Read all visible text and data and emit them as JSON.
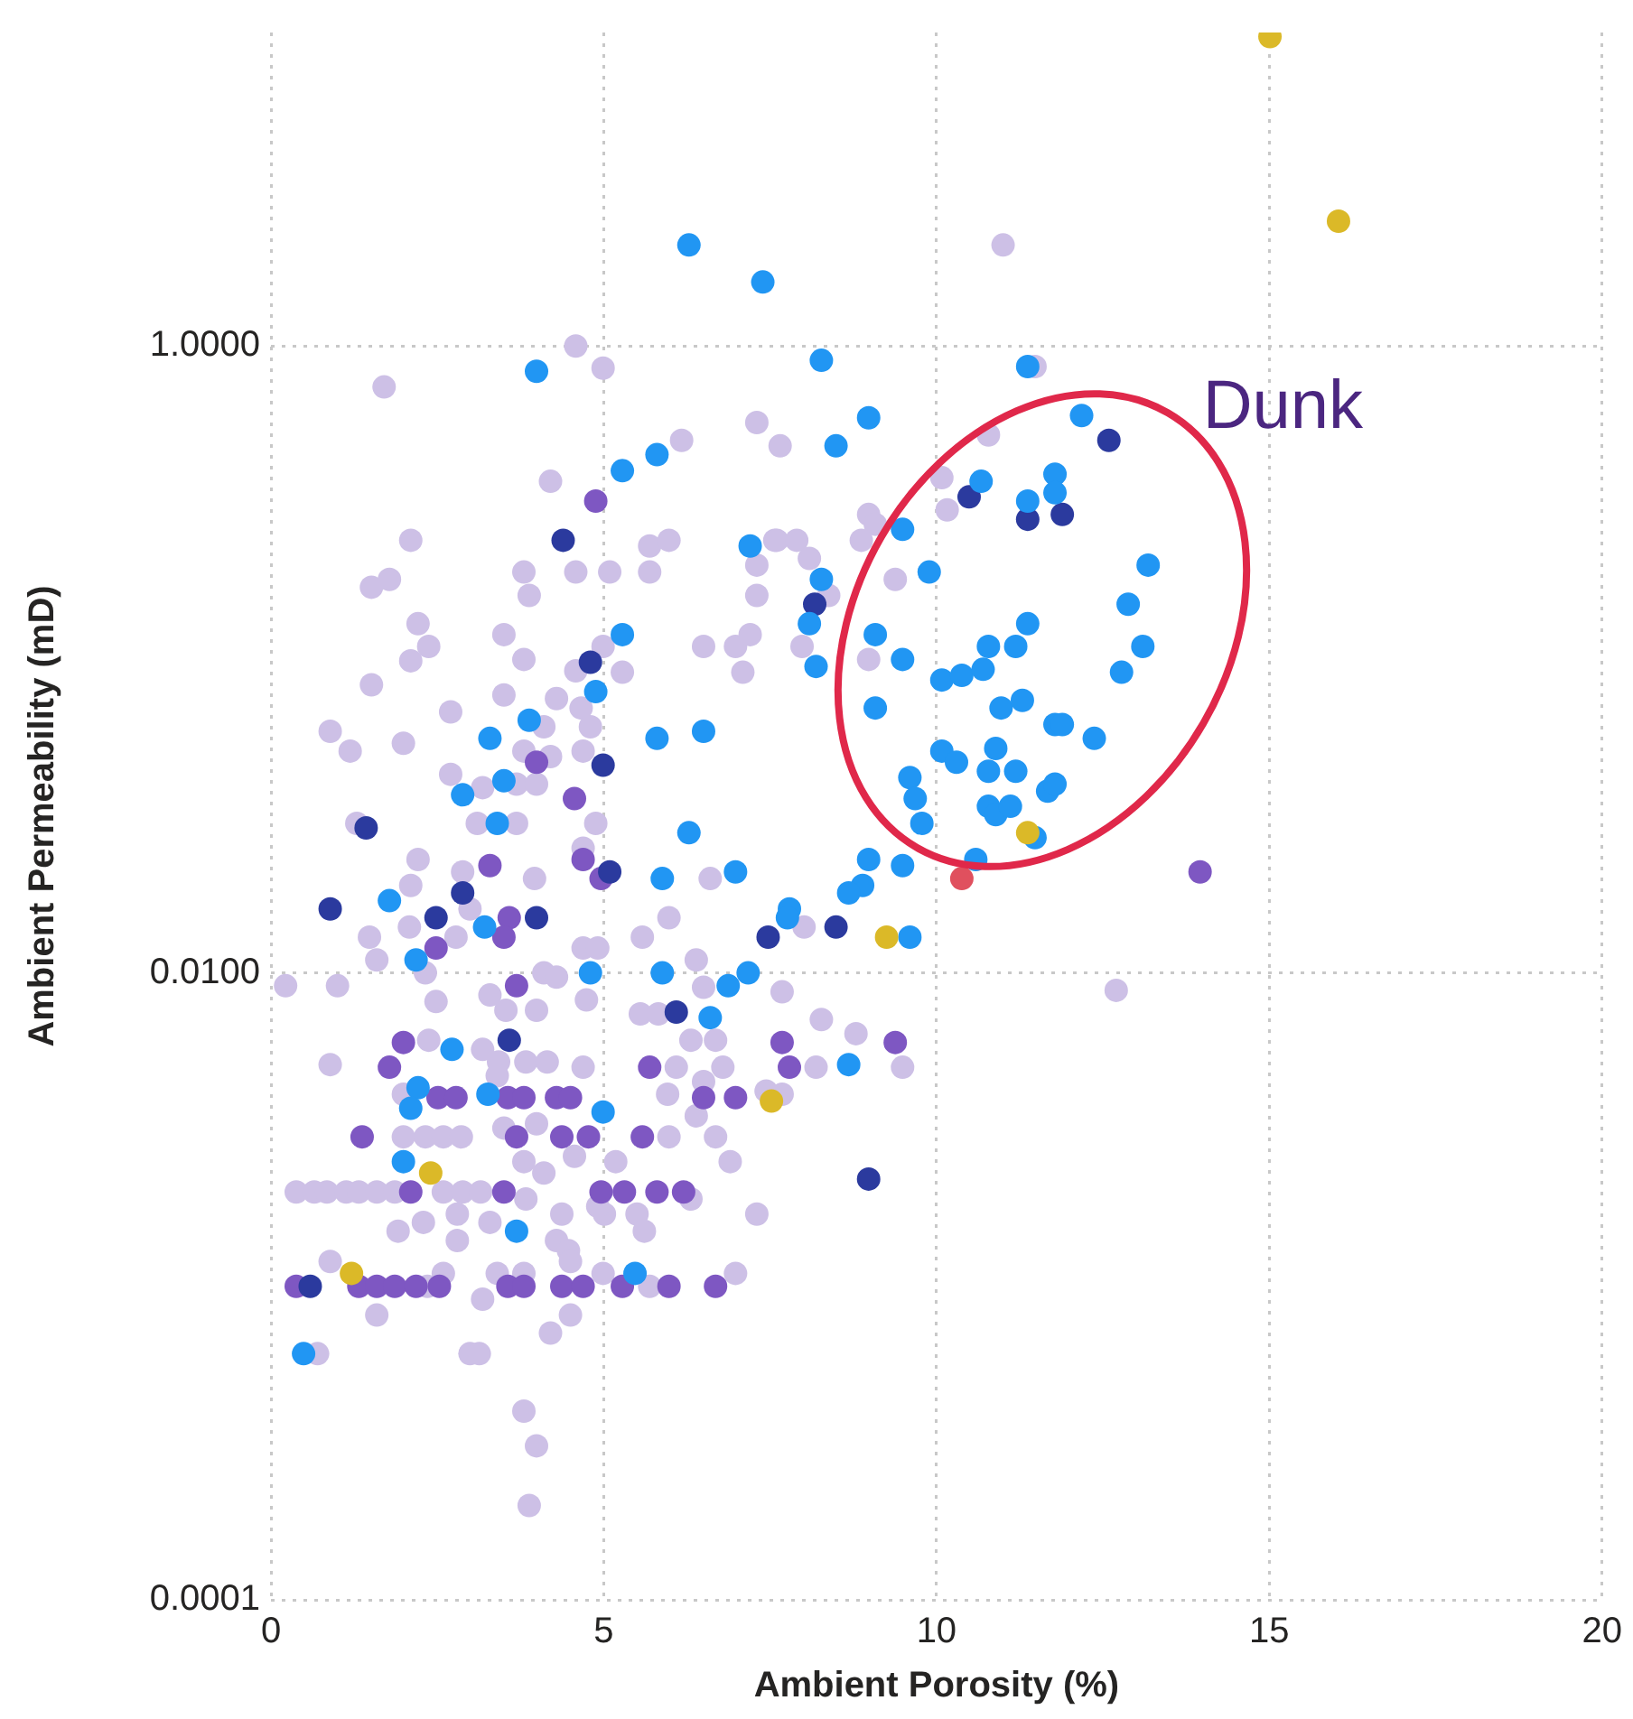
{
  "chart_data": {
    "type": "scatter",
    "xlabel": "Ambient Porosity (%)",
    "ylabel": "Ambient Permeability (mD)",
    "log": "y",
    "grid": true,
    "legend": false,
    "marker": "circle",
    "xlim": [
      0,
      20
    ],
    "xticks": [
      0,
      5,
      10,
      15,
      20
    ],
    "ylim": [
      0.0001,
      10
    ],
    "yticks": [
      {
        "value": 0.0001,
        "label": "0.0001"
      },
      {
        "value": 0.01,
        "label": "0.0100"
      },
      {
        "value": 1,
        "label": "1.0000"
      }
    ],
    "annotations": [
      "Dunk"
    ],
    "series": [
      {
        "color": "#cdc0e6",
        "x": [
          4.58,
          4.99,
          1.7,
          6.17,
          7.3,
          7.65,
          4.2,
          2.1,
          1.78,
          1.51,
          3.8,
          3.88,
          4.58,
          5.09,
          5.69,
          5.69,
          5.98,
          7.57,
          7.3,
          7.3,
          2.21,
          2.37,
          2.1,
          3.5,
          3.8,
          4.99,
          6.5,
          6.98,
          7.2,
          7.09,
          1.51,
          3.5,
          4.58,
          4.29,
          4.66,
          5.28,
          2.7,
          0.89,
          1.19,
          1.99,
          4.1,
          4.8,
          3.8,
          4.69,
          4.2,
          2.7,
          3.18,
          3.69,
          3.99,
          3.1,
          3.69,
          4.88,
          1.29,
          11.0,
          11.48,
          8.98,
          9.08,
          8.87,
          9.38,
          10.16,
          10.08,
          10.78,
          7.6,
          7.9,
          8.09,
          8.38,
          7.98,
          8.98,
          2.21,
          2.88,
          2.1,
          3.96,
          4.69,
          2.99,
          1.48,
          2.08,
          2.78,
          1.59,
          2.32,
          1.0,
          2.48,
          3.29,
          3.53,
          3.99,
          4.1,
          4.29,
          4.69,
          4.91,
          4.74,
          2.37,
          3.18,
          0.89,
          3.42,
          3.83,
          4.15,
          4.69,
          1.99,
          3.4,
          3.5,
          1.99,
          2.32,
          2.59,
          2.86,
          3.99,
          4.56,
          3.8,
          4.1,
          0.38,
          0.65,
          0.84,
          1.13,
          1.32,
          1.59,
          1.86,
          2.59,
          2.88,
          3.15,
          2.8,
          2.29,
          1.91,
          3.29,
          3.83,
          4.37,
          5.01,
          2.8,
          4.29,
          4.47,
          4.5,
          0.89,
          2.59,
          3.4,
          3.8,
          4.99,
          2.35,
          3.18,
          1.59,
          4.5,
          4.2,
          0.7,
          2.99,
          3.13,
          3.8,
          3.99,
          3.88,
          6.6,
          5.98,
          5.58,
          6.39,
          8.01,
          6.5,
          7.68,
          8.27,
          8.79,
          9.49,
          8.19,
          6.79,
          6.09,
          6.31,
          5.55,
          5.82,
          6.68,
          7.68,
          7.44,
          6.5,
          5.96,
          6.39,
          5.98,
          6.68,
          6.9,
          5.18,
          4.91,
          5.5,
          5.61,
          6.31,
          7.3,
          6.98,
          5.69,
          12.7,
          0.22
        ],
        "values": [
          1.0,
          0.85,
          0.74,
          0.5,
          0.57,
          0.48,
          0.37,
          0.24,
          0.18,
          0.17,
          0.19,
          0.16,
          0.19,
          0.19,
          0.19,
          0.23,
          0.24,
          0.24,
          0.2,
          0.16,
          0.13,
          0.11,
          0.099,
          0.12,
          0.1,
          0.11,
          0.11,
          0.11,
          0.12,
          0.091,
          0.083,
          0.077,
          0.092,
          0.075,
          0.07,
          0.091,
          0.068,
          0.059,
          0.051,
          0.054,
          0.061,
          0.061,
          0.051,
          0.051,
          0.049,
          0.043,
          0.039,
          0.04,
          0.04,
          0.03,
          0.03,
          0.03,
          0.03,
          2.1,
          0.86,
          0.29,
          0.27,
          0.24,
          0.18,
          0.3,
          0.38,
          0.52,
          0.24,
          0.24,
          0.21,
          0.16,
          0.11,
          0.1,
          0.023,
          0.021,
          0.019,
          0.02,
          0.025,
          0.016,
          0.013,
          0.014,
          0.013,
          0.011,
          0.01,
          0.0091,
          0.0081,
          0.0085,
          0.0076,
          0.0076,
          0.01,
          0.0097,
          0.012,
          0.012,
          0.0082,
          0.0061,
          0.0057,
          0.0051,
          0.0052,
          0.0052,
          0.0052,
          0.005,
          0.0041,
          0.0047,
          0.0032,
          0.003,
          0.003,
          0.003,
          0.003,
          0.0033,
          0.0026,
          0.0025,
          0.0023,
          0.002,
          0.002,
          0.002,
          0.002,
          0.002,
          0.002,
          0.002,
          0.002,
          0.002,
          0.002,
          0.0017,
          0.0016,
          0.0015,
          0.0016,
          0.0019,
          0.0017,
          0.0017,
          0.0014,
          0.0014,
          0.0013,
          0.0012,
          0.0012,
          0.0011,
          0.0011,
          0.0011,
          0.0011,
          0.001,
          0.00091,
          0.00081,
          0.00081,
          0.00071,
          0.00061,
          0.00061,
          0.00061,
          0.0004,
          0.00031,
          0.0002,
          0.02,
          0.015,
          0.013,
          0.011,
          0.014,
          0.009,
          0.0087,
          0.0071,
          0.0064,
          0.005,
          0.005,
          0.005,
          0.005,
          0.0061,
          0.0074,
          0.0074,
          0.0061,
          0.0041,
          0.0042,
          0.0045,
          0.0041,
          0.0035,
          0.003,
          0.003,
          0.0025,
          0.0025,
          0.0018,
          0.0017,
          0.0015,
          0.0019,
          0.0017,
          0.0011,
          0.001,
          0.0088,
          0.0091
        ]
      },
      {
        "color": "#7e57c2",
        "x": [
          4.88,
          4.56,
          13.96,
          3.99,
          3.29,
          4.69,
          4.96,
          3.58,
          2.48,
          3.5,
          3.69,
          1.99,
          1.78,
          7.68,
          9.38,
          7.79,
          5.69,
          2.51,
          2.78,
          3.56,
          3.8,
          4.29,
          4.5,
          6.5,
          6.98,
          1.37,
          3.69,
          4.37,
          4.77,
          5.58,
          2.1,
          3.5,
          4.96,
          5.31,
          5.8,
          6.2,
          0.38,
          1.32,
          1.59,
          1.86,
          2.18,
          2.53,
          3.56,
          3.8,
          4.37,
          4.69,
          5.28,
          5.98,
          6.68
        ],
        "values": [
          0.32,
          0.036,
          0.021,
          0.047,
          0.022,
          0.023,
          0.02,
          0.015,
          0.012,
          0.013,
          0.0091,
          0.006,
          0.005,
          0.006,
          0.006,
          0.005,
          0.005,
          0.004,
          0.004,
          0.004,
          0.004,
          0.004,
          0.004,
          0.004,
          0.004,
          0.003,
          0.003,
          0.003,
          0.003,
          0.003,
          0.002,
          0.002,
          0.002,
          0.002,
          0.002,
          0.002,
          0.001,
          0.001,
          0.001,
          0.001,
          0.001,
          0.001,
          0.001,
          0.001,
          0.001,
          0.001,
          0.001,
          0.001,
          0.001
        ]
      },
      {
        "color": "#2b3a9e",
        "x": [
          4.39,
          4.8,
          4.99,
          1.43,
          12.59,
          10.49,
          11.37,
          11.89,
          8.17,
          0.89,
          2.88,
          2.48,
          3.99,
          3.58,
          0.59,
          5.09,
          7.47,
          8.49,
          6.09,
          8.98
        ],
        "values": [
          0.24,
          0.098,
          0.046,
          0.029,
          0.5,
          0.33,
          0.28,
          0.29,
          0.15,
          0.016,
          0.018,
          0.015,
          0.015,
          0.0061,
          0.001,
          0.021,
          0.013,
          0.014,
          0.0075,
          0.0022
        ]
      },
      {
        "color": "#2196f3",
        "x": [
          6.28,
          7.39,
          3.99,
          5.28,
          5.8,
          7.2,
          5.28,
          4.88,
          3.88,
          3.29,
          5.8,
          6.5,
          3.5,
          2.88,
          3.4,
          6.28,
          8.27,
          11.37,
          8.98,
          8.49,
          12.18,
          10.67,
          11.78,
          11.78,
          11.37,
          9.49,
          9.89,
          13.18,
          8.27,
          12.88,
          8.09,
          9.08,
          11.37,
          10.78,
          11.19,
          13.1,
          9.49,
          8.19,
          10.08,
          10.38,
          10.7,
          12.78,
          9.08,
          10.97,
          11.29,
          11.78,
          11.89,
          12.37,
          10.08,
          10.3,
          10.89,
          10.78,
          11.19,
          9.6,
          9.68,
          9.78,
          10.78,
          10.89,
          11.11,
          11.67,
          11.78,
          11.48,
          10.59,
          8.98,
          9.49,
          8.89,
          8.68,
          7.79,
          1.78,
          3.21,
          2.18,
          4.8,
          2.72,
          2.21,
          2.1,
          3.26,
          1.99,
          3.69,
          0.49,
          5.88,
          6.98,
          7.76,
          9.6,
          5.88,
          7.17,
          6.87,
          6.6,
          8.68,
          4.99,
          5.47
        ],
        "values": [
          2.1,
          1.6,
          0.83,
          0.4,
          0.45,
          0.23,
          0.12,
          0.079,
          0.064,
          0.056,
          0.056,
          0.059,
          0.041,
          0.037,
          0.03,
          0.028,
          0.9,
          0.86,
          0.59,
          0.48,
          0.6,
          0.37,
          0.39,
          0.34,
          0.32,
          0.26,
          0.19,
          0.2,
          0.18,
          0.15,
          0.13,
          0.12,
          0.13,
          0.11,
          0.11,
          0.11,
          0.1,
          0.095,
          0.086,
          0.089,
          0.093,
          0.091,
          0.07,
          0.07,
          0.074,
          0.062,
          0.062,
          0.056,
          0.051,
          0.047,
          0.052,
          0.044,
          0.044,
          0.042,
          0.036,
          0.03,
          0.034,
          0.032,
          0.034,
          0.038,
          0.04,
          0.027,
          0.023,
          0.023,
          0.022,
          0.019,
          0.018,
          0.016,
          0.017,
          0.014,
          0.011,
          0.01,
          0.0057,
          0.0043,
          0.0037,
          0.0041,
          0.0025,
          0.0015,
          0.00061,
          0.02,
          0.021,
          0.015,
          0.013,
          0.01,
          0.01,
          0.0091,
          0.0072,
          0.0051,
          0.0036,
          0.0011
        ]
      },
      {
        "color": "#dbb928",
        "x": [
          15.01,
          16.04,
          11.37,
          9.25,
          7.52,
          2.4,
          1.21
        ],
        "values": [
          9.7,
          2.5,
          0.028,
          0.013,
          0.0039,
          0.0023,
          0.0011
        ]
      },
      {
        "color": "#e0505e",
        "x": [
          10.38
        ],
        "values": [
          0.02
        ]
      }
    ]
  }
}
